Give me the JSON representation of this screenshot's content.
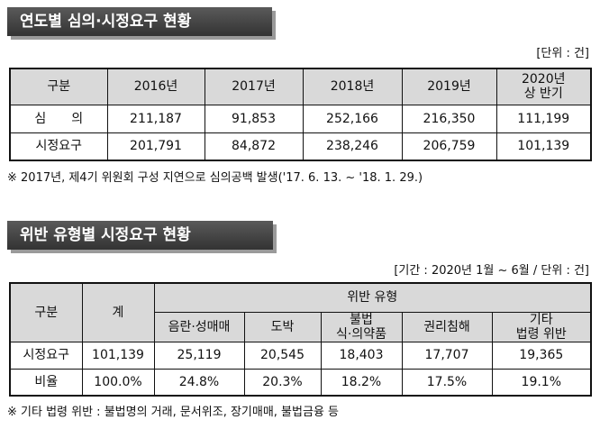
{
  "section1": {
    "title": "연도별 심의·시정요구 현황",
    "unit": "[단위 : 건]",
    "table": {
      "header": [
        [
          "구분"
        ],
        [
          "2016년"
        ],
        [
          "2017년"
        ],
        [
          "2018년"
        ],
        [
          "2019년"
        ],
        [
          "2020년",
          "상 반기"
        ]
      ],
      "rows": [
        [
          "심　　의",
          "211,187",
          "91,853",
          "252,166",
          "216,350",
          "111,199"
        ],
        [
          "시정요구",
          "201,791",
          "84,872",
          "238,246",
          "206,759",
          "101,139"
        ]
      ]
    },
    "note": "※ 2017년, 제4기 위원회 구성 지연으로 심의공백 발생('17. 6. 13. ~ '18. 1. 29.)"
  },
  "section2": {
    "title": "위반 유형별 시정요구 현황",
    "unit": "[기간 : 2020년 1월 ~ 6월 / 단위 : 건]",
    "table": {
      "header_top": [
        "구분",
        "계",
        "위반 유형"
      ],
      "header_sub": [
        [
          "음란·성매매"
        ],
        [
          "도박"
        ],
        [
          "불법",
          "식·의약품"
        ],
        [
          "권리침해"
        ],
        [
          "기타",
          "법령 위반"
        ]
      ],
      "rows": [
        [
          "시정요구",
          "101,139",
          "25,119",
          "20,545",
          "18,403",
          "17,707",
          "19,365"
        ],
        [
          "비율",
          "100.0%",
          "24.8%",
          "20.3%",
          "18.2%",
          "17.5%",
          "19.1%"
        ]
      ]
    },
    "note": "※ 기타 법령 위반 : 불법명의 거래, 문서위조, 장기매매, 불법금융 등"
  }
}
